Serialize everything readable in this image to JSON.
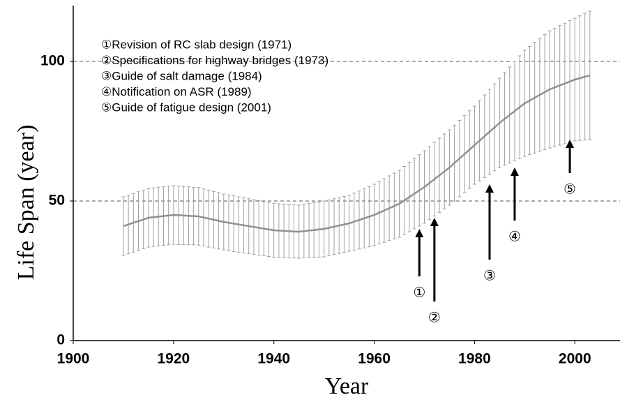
{
  "chart_data": {
    "type": "line",
    "xlabel": "Year",
    "ylabel": "Life Span (year)",
    "xlim": [
      1900,
      2009
    ],
    "ylim": [
      0,
      120
    ],
    "xticks": [
      1900,
      1920,
      1940,
      1960,
      1980,
      2000
    ],
    "yticks": [
      0,
      50,
      100
    ],
    "grid_y": [
      50,
      100
    ],
    "x": [
      1910,
      1911,
      1912,
      1913,
      1914,
      1915,
      1916,
      1917,
      1918,
      1919,
      1920,
      1921,
      1922,
      1923,
      1924,
      1925,
      1926,
      1927,
      1928,
      1929,
      1930,
      1931,
      1932,
      1933,
      1934,
      1935,
      1936,
      1937,
      1938,
      1939,
      1940,
      1941,
      1942,
      1943,
      1944,
      1945,
      1946,
      1947,
      1948,
      1949,
      1950,
      1951,
      1952,
      1953,
      1954,
      1955,
      1956,
      1957,
      1958,
      1959,
      1960,
      1961,
      1962,
      1963,
      1964,
      1965,
      1966,
      1967,
      1968,
      1969,
      1970,
      1971,
      1972,
      1973,
      1974,
      1975,
      1976,
      1977,
      1978,
      1979,
      1980,
      1981,
      1982,
      1983,
      1984,
      1985,
      1986,
      1987,
      1988,
      1989,
      1990,
      1991,
      1992,
      1993,
      1994,
      1995,
      1996,
      1997,
      1998,
      1999,
      2000,
      2001,
      2002,
      2003
    ],
    "series": [
      {
        "color": "#a0a0a0",
        "values": [
          41,
          41.6,
          42.2,
          42.8,
          43.4,
          44,
          44.2,
          44.4,
          44.6,
          44.8,
          45,
          44.9,
          44.8,
          44.7,
          44.6,
          44.5,
          44.1,
          43.7,
          43.3,
          42.9,
          42.5,
          42.2,
          41.9,
          41.6,
          41.3,
          41,
          40.7,
          40.4,
          40.1,
          39.8,
          39.5,
          39.4,
          39.3,
          39.2,
          39.1,
          39,
          39.2,
          39.4,
          39.6,
          39.8,
          40,
          40.4,
          40.8,
          41.2,
          41.6,
          42,
          42.6,
          43.2,
          43.8,
          44.4,
          45,
          45.8,
          46.6,
          47.4,
          48.2,
          49,
          50.2,
          51.4,
          52.6,
          53.8,
          55,
          56.4,
          57.8,
          59.2,
          60.6,
          62,
          63.6,
          65.2,
          66.8,
          68.4,
          70,
          71.6,
          73.2,
          74.8,
          76.4,
          78,
          79.4,
          80.8,
          82.2,
          83.6,
          85,
          86,
          87,
          88,
          89,
          90,
          90.7,
          91.4,
          92.1,
          92.8,
          93.5,
          94,
          94.5,
          95
        ],
        "errors": [
          10.5,
          10.5,
          10.5,
          10.5,
          10.5,
          10.5,
          10.5,
          10.5,
          10.5,
          10.5,
          10.5,
          10.5,
          10.4,
          10.4,
          10.3,
          10.3,
          10.2,
          10.2,
          10.1,
          10.1,
          10,
          10,
          10,
          9.9,
          9.9,
          9.8,
          9.8,
          9.8,
          9.7,
          9.7,
          9.7,
          9.6,
          9.6,
          9.6,
          9.5,
          9.5,
          9.6,
          9.7,
          9.8,
          9.9,
          10,
          10,
          10,
          10,
          10,
          10,
          10.2,
          10.4,
          10.6,
          10.8,
          11,
          11.2,
          11.4,
          11.6,
          11.8,
          12,
          12.2,
          12.4,
          12.6,
          12.8,
          13,
          13.1,
          13.2,
          13.3,
          13.4,
          13.5,
          13.6,
          13.7,
          13.8,
          13.9,
          14,
          14.4,
          14.8,
          15.2,
          15.6,
          16,
          16.6,
          17.2,
          17.8,
          18.4,
          19,
          19.4,
          19.8,
          20.2,
          20.6,
          21,
          21.2,
          21.4,
          21.6,
          21.8,
          22,
          22.3,
          22.7,
          23
        ]
      }
    ],
    "notes": [
      "①Revision of RC slab design (1971)",
      "②Specifications for highway bridges (1973)",
      "③Guide of salt damage (1984)",
      "④Notification on ASR (1989)",
      "⑤Guide of fatigue design (2001)"
    ],
    "arrows": [
      {
        "label": "①",
        "x": 1969,
        "y_tip": 40,
        "y_tail": 23
      },
      {
        "label": "②",
        "x": 1972,
        "y_tip": 44,
        "y_tail": 14
      },
      {
        "label": "③",
        "x": 1983,
        "y_tip": 56,
        "y_tail": 29
      },
      {
        "label": "④",
        "x": 1988,
        "y_tip": 62,
        "y_tail": 43
      },
      {
        "label": "⑤",
        "x": 1999,
        "y_tip": 72,
        "y_tail": 60
      }
    ]
  }
}
